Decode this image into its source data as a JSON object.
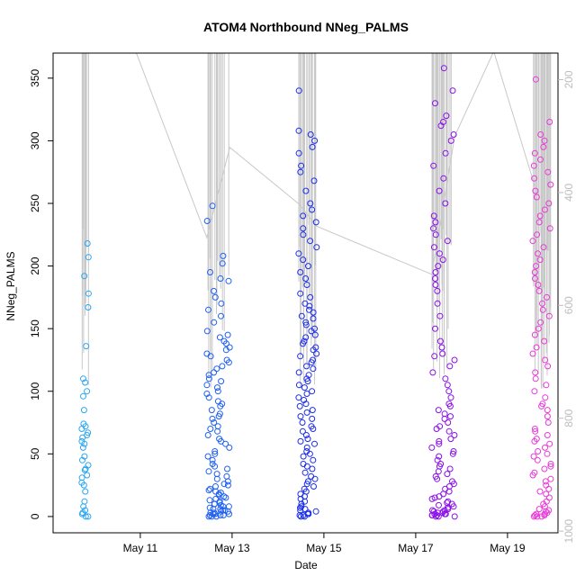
{
  "chart_data": {
    "type": "scatter",
    "title": "ATOM4 Northbound NNeg_PALMS",
    "xlabel": "Date",
    "ylabel": "NNeg_PALMS",
    "x_ticks": [
      "May 11",
      "May 13",
      "May 15",
      "May 17",
      "May 19"
    ],
    "x_tick_days": [
      11,
      13,
      15,
      17,
      19
    ],
    "xlim": [
      9.1,
      20.1
    ],
    "ylim": [
      -13,
      370
    ],
    "y_ticks": [
      0,
      50,
      100,
      150,
      200,
      250,
      300,
      350
    ],
    "y2_ticks": [
      200,
      400,
      600,
      800,
      1000
    ],
    "y2lim": [
      1003,
      153
    ],
    "right_axis_color": "#bdbdbd",
    "altitude_line_color": "#c8c8c8",
    "series": [
      {
        "start": 9.72,
        "end": 9.88,
        "color": "#2aa6f0",
        "values": [
          0,
          0,
          2,
          3,
          5,
          8,
          12,
          20,
          25,
          27,
          31,
          33,
          37,
          38,
          41,
          45,
          48,
          55,
          58,
          60,
          63,
          65,
          67,
          70,
          72,
          74,
          85,
          96,
          100,
          107,
          110,
          136,
          167,
          178,
          192,
          207,
          218
        ]
      },
      {
        "start": 12.45,
        "end": 12.95,
        "color": "#2060f0",
        "values": [
          0,
          0,
          0,
          1,
          1,
          1,
          2,
          2,
          2,
          3,
          3,
          4,
          4,
          5,
          5,
          6,
          6,
          7,
          8,
          8,
          9,
          10,
          10,
          11,
          12,
          13,
          14,
          15,
          16,
          17,
          18,
          19,
          20,
          21,
          22,
          24,
          25,
          26,
          28,
          30,
          32,
          34,
          36,
          38,
          40,
          42,
          45,
          48,
          50,
          52,
          55,
          58,
          60,
          62,
          65,
          68,
          70,
          72,
          75,
          78,
          80,
          82,
          85,
          88,
          90,
          92,
          95,
          98,
          100,
          103,
          105,
          108,
          110,
          113,
          115,
          118,
          120,
          123,
          125,
          128,
          130,
          133,
          135,
          138,
          140,
          143,
          145,
          148,
          155,
          160,
          165,
          170,
          175,
          180,
          188,
          190,
          195,
          202,
          208,
          236,
          248
        ]
      },
      {
        "start": 14.45,
        "end": 14.85,
        "color": "#1c2ee8",
        "values": [
          0,
          0,
          1,
          1,
          2,
          2,
          3,
          4,
          5,
          6,
          7,
          8,
          10,
          12,
          14,
          16,
          18,
          20,
          22,
          24,
          26,
          28,
          30,
          32,
          35,
          38,
          40,
          42,
          45,
          48,
          50,
          52,
          55,
          58,
          60,
          62,
          65,
          68,
          70,
          72,
          75,
          78,
          80,
          83,
          85,
          88,
          90,
          93,
          95,
          98,
          100,
          103,
          105,
          108,
          110,
          113,
          115,
          118,
          120,
          123,
          125,
          128,
          130,
          133,
          135,
          138,
          140,
          143,
          145,
          148,
          150,
          153,
          155,
          158,
          160,
          163,
          165,
          168,
          170,
          175,
          178,
          185,
          190,
          195,
          200,
          205,
          210,
          215,
          220,
          225,
          230,
          235,
          240,
          245,
          250,
          260,
          268,
          275,
          280,
          290,
          295,
          300,
          305,
          308,
          340
        ]
      },
      {
        "start": 17.35,
        "end": 17.85,
        "color": "#8a10e8",
        "values": [
          0,
          0,
          0,
          1,
          1,
          1,
          2,
          2,
          2,
          3,
          3,
          4,
          4,
          5,
          5,
          6,
          7,
          8,
          9,
          10,
          11,
          12,
          14,
          15,
          16,
          18,
          20,
          22,
          24,
          26,
          28,
          30,
          32,
          34,
          36,
          38,
          40,
          42,
          45,
          48,
          50,
          52,
          55,
          58,
          60,
          62,
          65,
          68,
          70,
          72,
          75,
          78,
          80,
          82,
          85,
          88,
          90,
          95,
          100,
          105,
          110,
          115,
          120,
          125,
          128,
          130,
          135,
          140,
          150,
          160,
          170,
          180,
          185,
          190,
          195,
          200,
          205,
          210,
          215,
          220,
          225,
          230,
          235,
          240,
          250,
          260,
          270,
          280,
          290,
          300,
          305,
          312,
          315,
          320,
          330,
          340,
          358
        ]
      },
      {
        "start": 19.55,
        "end": 19.95,
        "color": "#e83ad8",
        "values": [
          0,
          0,
          0,
          1,
          1,
          2,
          2,
          3,
          4,
          5,
          6,
          8,
          10,
          12,
          15,
          18,
          20,
          22,
          25,
          28,
          30,
          33,
          35,
          38,
          40,
          42,
          45,
          48,
          50,
          52,
          55,
          58,
          60,
          62,
          65,
          68,
          70,
          75,
          80,
          85,
          88,
          90,
          95,
          100,
          105,
          110,
          115,
          120,
          125,
          130,
          135,
          140,
          145,
          150,
          155,
          160,
          165,
          170,
          175,
          180,
          185,
          190,
          195,
          200,
          205,
          210,
          215,
          220,
          225,
          230,
          235,
          240,
          245,
          250,
          255,
          260,
          265,
          270,
          275,
          280,
          285,
          290,
          295,
          300,
          305,
          315,
          349
        ]
      }
    ],
    "altitude_trend": [
      {
        "x": 9.85,
        "depth": 100
      },
      {
        "x": 10.9,
        "depth": 150
      },
      {
        "x": 12.45,
        "depth": 480
      },
      {
        "x": 12.95,
        "depth": 320
      },
      {
        "x": 14.45,
        "depth": 420
      },
      {
        "x": 14.85,
        "depth": 460
      },
      {
        "x": 17.35,
        "depth": 545
      },
      {
        "x": 17.85,
        "depth": 300
      },
      {
        "x": 18.7,
        "depth": 150
      },
      {
        "x": 19.6,
        "depth": 390
      }
    ]
  }
}
